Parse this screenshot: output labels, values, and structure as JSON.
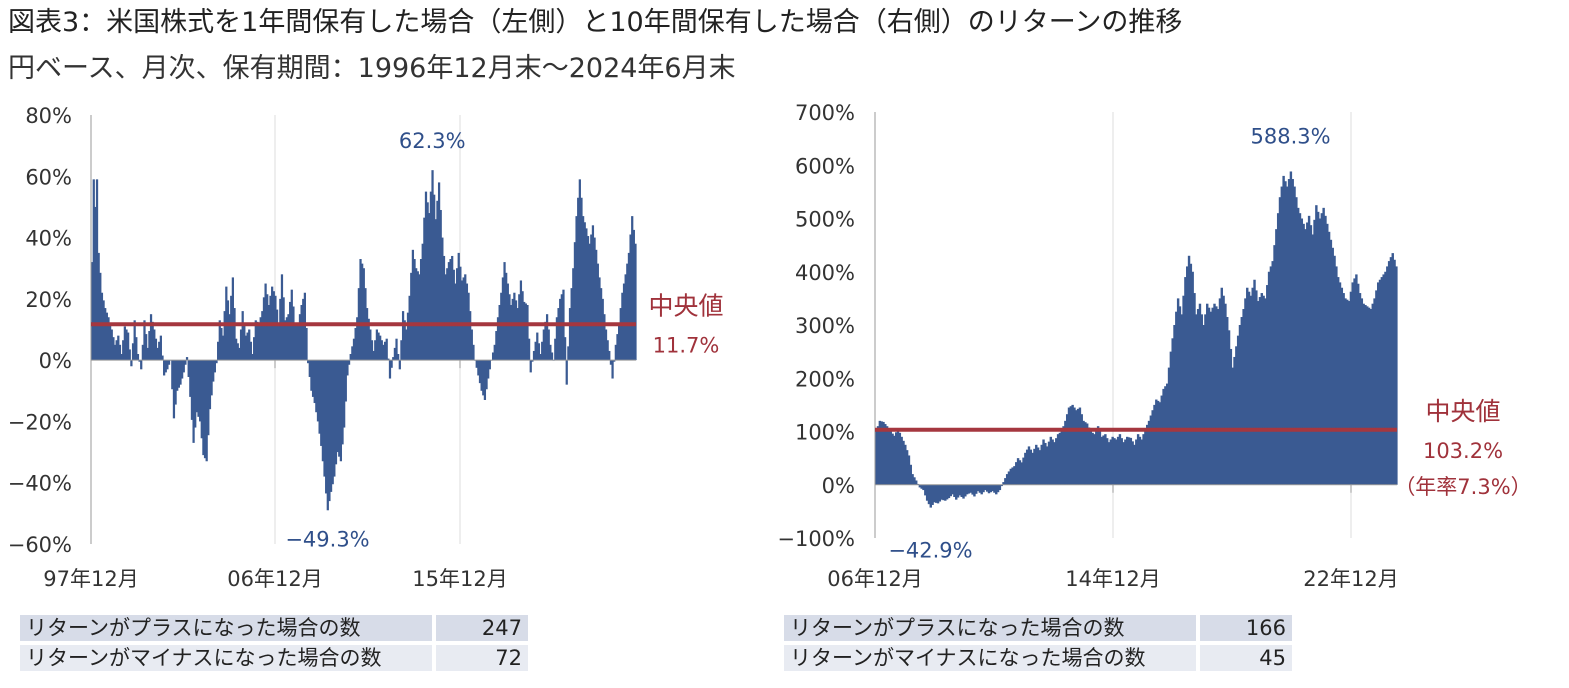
{
  "header": {
    "title": "図表3：米国株式を1年間保有した場合（左側）と10年間保有した場合（右側）のリターンの推移",
    "subtitle": "円ベース、月次、保有期間：1996年12月末～2024年6月末"
  },
  "colors": {
    "bar": "#3a5a92",
    "median": "#a5373f",
    "annotation": "#2f4f8a"
  },
  "chart_data": [
    {
      "type": "bar",
      "x_tick_labels": [
        "97年12月",
        "06年12月",
        "15年12月"
      ],
      "y_tick_labels": [
        "80%",
        "60%",
        "40%",
        "20%",
        "0%",
        "−20%",
        "−40%",
        "−60%"
      ],
      "ylim": [
        -60,
        80
      ],
      "unit": "%",
      "anchors": [
        [
          0,
          32
        ],
        [
          1,
          59
        ],
        [
          2,
          50
        ],
        [
          3,
          59
        ],
        [
          4,
          35
        ],
        [
          6,
          22
        ],
        [
          8,
          17
        ],
        [
          10,
          14
        ],
        [
          12,
          10
        ],
        [
          14,
          5
        ],
        [
          16,
          8
        ],
        [
          18,
          2
        ],
        [
          20,
          11
        ],
        [
          22,
          9
        ],
        [
          24,
          -2
        ],
        [
          26,
          13
        ],
        [
          28,
          2
        ],
        [
          30,
          -3
        ],
        [
          32,
          13
        ],
        [
          34,
          4
        ],
        [
          36,
          15
        ],
        [
          38,
          10
        ],
        [
          40,
          4
        ],
        [
          42,
          8
        ],
        [
          44,
          -5
        ],
        [
          46,
          -3
        ],
        [
          48,
          0
        ],
        [
          50,
          -19
        ],
        [
          52,
          -10
        ],
        [
          54,
          -8
        ],
        [
          56,
          -4
        ],
        [
          58,
          1
        ],
        [
          60,
          -12
        ],
        [
          62,
          -27
        ],
        [
          64,
          -17
        ],
        [
          66,
          -20
        ],
        [
          68,
          -31
        ],
        [
          70,
          -33
        ],
        [
          72,
          -16
        ],
        [
          74,
          -7
        ],
        [
          76,
          -1
        ],
        [
          78,
          13
        ],
        [
          80,
          8
        ],
        [
          82,
          24
        ],
        [
          84,
          15
        ],
        [
          86,
          27
        ],
        [
          88,
          7
        ],
        [
          90,
          4
        ],
        [
          92,
          16
        ],
        [
          94,
          8
        ],
        [
          96,
          10
        ],
        [
          98,
          2
        ],
        [
          100,
          13
        ],
        [
          102,
          12
        ],
        [
          104,
          16
        ],
        [
          106,
          25
        ],
        [
          108,
          18
        ],
        [
          110,
          24
        ],
        [
          112,
          21
        ],
        [
          114,
          12
        ],
        [
          116,
          28
        ],
        [
          118,
          13
        ],
        [
          120,
          15
        ],
        [
          122,
          23
        ],
        [
          124,
          12
        ],
        [
          126,
          12
        ],
        [
          128,
          18
        ],
        [
          130,
          22
        ],
        [
          132,
          -1
        ],
        [
          134,
          -10
        ],
        [
          136,
          -14
        ],
        [
          138,
          -20
        ],
        [
          140,
          -28
        ],
        [
          142,
          -38
        ],
        [
          144,
          -49
        ],
        [
          146,
          -43
        ],
        [
          148,
          -38
        ],
        [
          150,
          -30
        ],
        [
          152,
          -33
        ],
        [
          154,
          -22
        ],
        [
          156,
          -5
        ],
        [
          158,
          2
        ],
        [
          160,
          7
        ],
        [
          162,
          14
        ],
        [
          164,
          33
        ],
        [
          166,
          30
        ],
        [
          168,
          17
        ],
        [
          170,
          10
        ],
        [
          172,
          3
        ],
        [
          174,
          10
        ],
        [
          176,
          8
        ],
        [
          178,
          5
        ],
        [
          180,
          7
        ],
        [
          182,
          -6
        ],
        [
          184,
          1
        ],
        [
          186,
          7
        ],
        [
          188,
          -3
        ],
        [
          190,
          16
        ],
        [
          192,
          10
        ],
        [
          194,
          21
        ],
        [
          196,
          36
        ],
        [
          198,
          30
        ],
        [
          200,
          28
        ],
        [
          202,
          38
        ],
        [
          204,
          55
        ],
        [
          206,
          48
        ],
        [
          208,
          62
        ],
        [
          210,
          46
        ],
        [
          212,
          58
        ],
        [
          214,
          40
        ],
        [
          216,
          28
        ],
        [
          218,
          32
        ],
        [
          220,
          34
        ],
        [
          222,
          25
        ],
        [
          224,
          35
        ],
        [
          226,
          26
        ],
        [
          228,
          28
        ],
        [
          230,
          22
        ],
        [
          232,
          10
        ],
        [
          234,
          0
        ],
        [
          236,
          -5
        ],
        [
          238,
          -10
        ],
        [
          240,
          -13
        ],
        [
          242,
          -6
        ],
        [
          244,
          0
        ],
        [
          246,
          5
        ],
        [
          248,
          14
        ],
        [
          250,
          22
        ],
        [
          252,
          32
        ],
        [
          254,
          25
        ],
        [
          256,
          18
        ],
        [
          258,
          22
        ],
        [
          260,
          17
        ],
        [
          262,
          26
        ],
        [
          264,
          19
        ],
        [
          266,
          18
        ],
        [
          268,
          -4
        ],
        [
          270,
          3
        ],
        [
          272,
          9
        ],
        [
          274,
          2
        ],
        [
          276,
          10
        ],
        [
          278,
          15
        ],
        [
          280,
          5
        ],
        [
          282,
          0
        ],
        [
          284,
          14
        ],
        [
          286,
          20
        ],
        [
          288,
          23
        ],
        [
          290,
          -8
        ],
        [
          292,
          17
        ],
        [
          294,
          30
        ],
        [
          296,
          47
        ],
        [
          298,
          59
        ],
        [
          300,
          47
        ],
        [
          302,
          43
        ],
        [
          304,
          38
        ],
        [
          306,
          44
        ],
        [
          308,
          36
        ],
        [
          310,
          27
        ],
        [
          312,
          20
        ],
        [
          314,
          10
        ],
        [
          316,
          3
        ],
        [
          318,
          -6
        ],
        [
          320,
          5
        ],
        [
          322,
          12
        ],
        [
          324,
          22
        ],
        [
          326,
          28
        ],
        [
          328,
          35
        ],
        [
          330,
          47
        ],
        [
          332,
          38
        ]
      ],
      "median": {
        "value": 11.7,
        "label": "中央値",
        "value_label": "11.7%"
      },
      "annotations": {
        "max": "62.3%",
        "min": "−49.3%"
      },
      "stats": [
        {
          "label": "リターンがプラスになった場合の数",
          "value": "247"
        },
        {
          "label": "リターンがマイナスになった場合の数",
          "value": "72"
        }
      ]
    },
    {
      "type": "bar",
      "x_tick_labels": [
        "06年12月",
        "14年12月",
        "22年12月"
      ],
      "y_tick_labels": [
        "700%",
        "600%",
        "500%",
        "400%",
        "300%",
        "200%",
        "100%",
        "0%",
        "−100%"
      ],
      "ylim": [
        -100,
        700
      ],
      "unit": "%",
      "anchors": [
        [
          0,
          100
        ],
        [
          2,
          120
        ],
        [
          4,
          118
        ],
        [
          6,
          110
        ],
        [
          8,
          100
        ],
        [
          10,
          92
        ],
        [
          12,
          105
        ],
        [
          14,
          90
        ],
        [
          16,
          75
        ],
        [
          18,
          55
        ],
        [
          20,
          20
        ],
        [
          22,
          8
        ],
        [
          24,
          -5
        ],
        [
          26,
          -10
        ],
        [
          28,
          -30
        ],
        [
          30,
          -42.9
        ],
        [
          32,
          -33
        ],
        [
          34,
          -35
        ],
        [
          36,
          -28
        ],
        [
          38,
          -30
        ],
        [
          40,
          -25
        ],
        [
          42,
          -18
        ],
        [
          44,
          -28
        ],
        [
          46,
          -20
        ],
        [
          48,
          -26
        ],
        [
          50,
          -18
        ],
        [
          52,
          -15
        ],
        [
          54,
          -22
        ],
        [
          56,
          -12
        ],
        [
          58,
          -18
        ],
        [
          60,
          -10
        ],
        [
          62,
          -16
        ],
        [
          64,
          -12
        ],
        [
          66,
          -18
        ],
        [
          68,
          -10
        ],
        [
          70,
          5
        ],
        [
          72,
          20
        ],
        [
          74,
          30
        ],
        [
          76,
          35
        ],
        [
          78,
          50
        ],
        [
          80,
          42
        ],
        [
          82,
          60
        ],
        [
          84,
          72
        ],
        [
          86,
          60
        ],
        [
          88,
          75
        ],
        [
          90,
          65
        ],
        [
          92,
          85
        ],
        [
          94,
          72
        ],
        [
          96,
          90
        ],
        [
          98,
          80
        ],
        [
          100,
          95
        ],
        [
          102,
          100
        ],
        [
          104,
          120
        ],
        [
          106,
          145
        ],
        [
          108,
          150
        ],
        [
          110,
          140
        ],
        [
          112,
          145
        ],
        [
          114,
          120
        ],
        [
          116,
          115
        ],
        [
          118,
          100
        ],
        [
          120,
          95
        ],
        [
          122,
          110
        ],
        [
          124,
          90
        ],
        [
          126,
          95
        ],
        [
          128,
          80
        ],
        [
          130,
          90
        ],
        [
          132,
          85
        ],
        [
          134,
          95
        ],
        [
          136,
          80
        ],
        [
          138,
          90
        ],
        [
          140,
          88
        ],
        [
          142,
          75
        ],
        [
          144,
          95
        ],
        [
          146,
          85
        ],
        [
          148,
          105
        ],
        [
          150,
          120
        ],
        [
          152,
          140
        ],
        [
          154,
          160
        ],
        [
          156,
          155
        ],
        [
          158,
          180
        ],
        [
          160,
          190
        ],
        [
          162,
          250
        ],
        [
          164,
          300
        ],
        [
          166,
          350
        ],
        [
          168,
          320
        ],
        [
          170,
          390
        ],
        [
          172,
          430
        ],
        [
          174,
          400
        ],
        [
          176,
          320
        ],
        [
          178,
          340
        ],
        [
          180,
          300
        ],
        [
          182,
          340
        ],
        [
          184,
          325
        ],
        [
          186,
          340
        ],
        [
          188,
          330
        ],
        [
          190,
          370
        ],
        [
          192,
          340
        ],
        [
          194,
          290
        ],
        [
          196,
          220
        ],
        [
          198,
          260
        ],
        [
          200,
          300
        ],
        [
          202,
          330
        ],
        [
          204,
          370
        ],
        [
          206,
          355
        ],
        [
          208,
          385
        ],
        [
          210,
          345
        ],
        [
          212,
          360
        ],
        [
          214,
          350
        ],
        [
          216,
          400
        ],
        [
          218,
          420
        ],
        [
          220,
          480
        ],
        [
          222,
          540
        ],
        [
          224,
          580
        ],
        [
          226,
          560
        ],
        [
          228,
          588.3
        ],
        [
          230,
          560
        ],
        [
          232,
          520
        ],
        [
          234,
          500
        ],
        [
          236,
          480
        ],
        [
          238,
          505
        ],
        [
          240,
          470
        ],
        [
          242,
          525
        ],
        [
          244,
          500
        ],
        [
          246,
          520
        ],
        [
          248,
          490
        ],
        [
          250,
          460
        ],
        [
          252,
          430
        ],
        [
          254,
          390
        ],
        [
          256,
          370
        ],
        [
          258,
          350
        ],
        [
          260,
          345
        ],
        [
          262,
          380
        ],
        [
          264,
          395
        ],
        [
          266,
          360
        ],
        [
          268,
          340
        ],
        [
          270,
          335
        ],
        [
          272,
          330
        ],
        [
          274,
          350
        ],
        [
          276,
          380
        ],
        [
          278,
          390
        ],
        [
          280,
          400
        ],
        [
          282,
          420
        ],
        [
          284,
          435
        ],
        [
          286,
          410
        ]
      ],
      "median": {
        "value": 103.2,
        "label": "中央値",
        "value_label": "103.2%",
        "annual_label": "（年率7.3%）"
      },
      "annotations": {
        "max": "588.3%",
        "min": "−42.9%"
      },
      "stats": [
        {
          "label": "リターンがプラスになった場合の数",
          "value": "166"
        },
        {
          "label": "リターンがマイナスになった場合の数",
          "value": "45"
        }
      ]
    }
  ]
}
